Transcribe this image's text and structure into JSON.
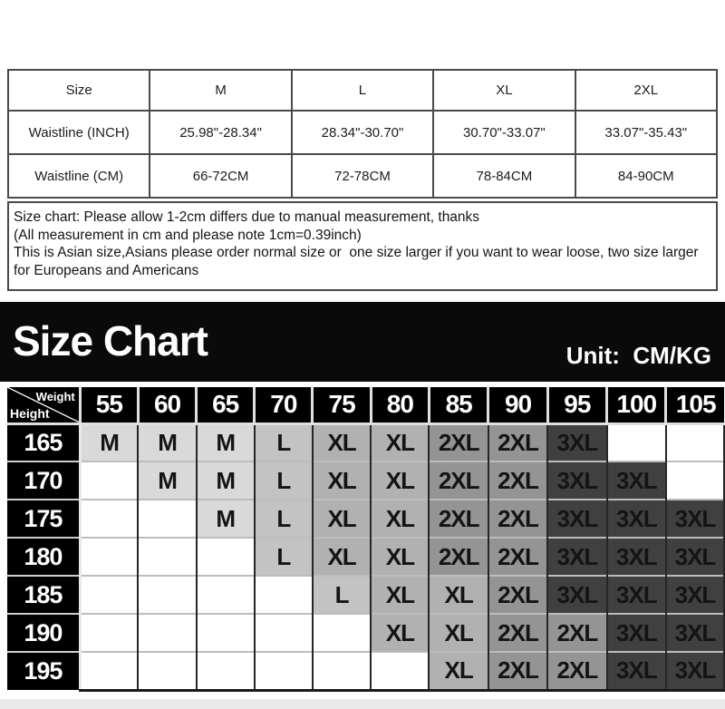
{
  "waistline_table": {
    "header": [
      "Size",
      "M",
      "L",
      "XL",
      "2XL"
    ],
    "rows": [
      {
        "label": "Waistline (INCH)",
        "values": [
          "25.98\"-28.34\"",
          "28.34\"-30.70\"",
          "30.70\"-33.07\"",
          "33.07\"-35.43\""
        ]
      },
      {
        "label": "Waistline (CM)",
        "values": [
          "66-72CM",
          "72-78CM",
          "78-84CM",
          "84-90CM"
        ]
      }
    ]
  },
  "notes": {
    "line1": "Size chart: Please allow 1-2cm differs due to manual measurement, thanks",
    "line2": "(All measurement in cm and please note 1cm=0.39inch)",
    "line3": "This is Asian size,Asians please order normal size or  one size larger if you want to wear loose, two size larger for Europeans and Americans"
  },
  "banner": {
    "title": "Size Chart",
    "unit_label": "Unit:  CM/KG",
    "background": "#0a0a0a",
    "text_color": "#ffffff"
  },
  "size_matrix": {
    "corner": {
      "top": "Weight",
      "bottom": "Height"
    },
    "weights": [
      "55",
      "60",
      "65",
      "70",
      "75",
      "80",
      "85",
      "90",
      "95",
      "100",
      "105"
    ],
    "heights": [
      "165",
      "170",
      "175",
      "180",
      "185",
      "190",
      "195"
    ],
    "cells": [
      [
        "M",
        "M",
        "M",
        "L",
        "XL",
        "XL",
        "2XL",
        "2XL",
        "3XL",
        "",
        ""
      ],
      [
        "",
        "M",
        "M",
        "L",
        "XL",
        "XL",
        "2XL",
        "2XL",
        "3XL",
        "3XL",
        ""
      ],
      [
        "",
        "",
        "M",
        "L",
        "XL",
        "XL",
        "2XL",
        "2XL",
        "3XL",
        "3XL",
        "3XL"
      ],
      [
        "",
        "",
        "",
        "L",
        "XL",
        "XL",
        "2XL",
        "2XL",
        "3XL",
        "3XL",
        "3XL"
      ],
      [
        "",
        "",
        "",
        "",
        "L",
        "XL",
        "XL",
        "2XL",
        "3XL",
        "3XL",
        "3XL"
      ],
      [
        "",
        "",
        "",
        "",
        "",
        "XL",
        "XL",
        "2XL",
        "2XL",
        "3XL",
        "3XL"
      ],
      [
        "",
        "",
        "",
        "",
        "",
        "",
        "XL",
        "2XL",
        "2XL",
        "3XL",
        "3XL"
      ]
    ],
    "size_colors": {
      "M": "#d9d9d9",
      "L": "#c3c3c3",
      "XL": "#b1b1b1",
      "2XL": "#949494",
      "3XL": "#404040",
      "": "#ffffff"
    },
    "header_background": "#000000",
    "header_text_color": "#ffffff"
  }
}
